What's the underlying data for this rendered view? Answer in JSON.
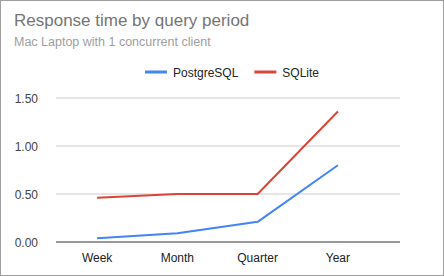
{
  "chart_data": {
    "type": "line",
    "title": "Response time by query period",
    "subtitle": "Mac Laptop with 1 concurrent client",
    "categories": [
      "Week",
      "Month",
      "Quarter",
      "Year"
    ],
    "series": [
      {
        "name": "PostgreSQL",
        "color": "#4285f4",
        "values": [
          0.04,
          0.09,
          0.21,
          0.8
        ]
      },
      {
        "name": "SQLite",
        "color": "#db4437",
        "values": [
          0.46,
          0.5,
          0.5,
          1.36
        ]
      }
    ],
    "ylim": [
      0,
      1.5
    ],
    "yticks": [
      {
        "value": 0,
        "label": "0.00"
      },
      {
        "value": 0.5,
        "label": "0.50"
      },
      {
        "value": 1,
        "label": "1.00"
      },
      {
        "value": 1.5,
        "label": "1.50"
      }
    ],
    "grid": true,
    "legend": "top"
  }
}
